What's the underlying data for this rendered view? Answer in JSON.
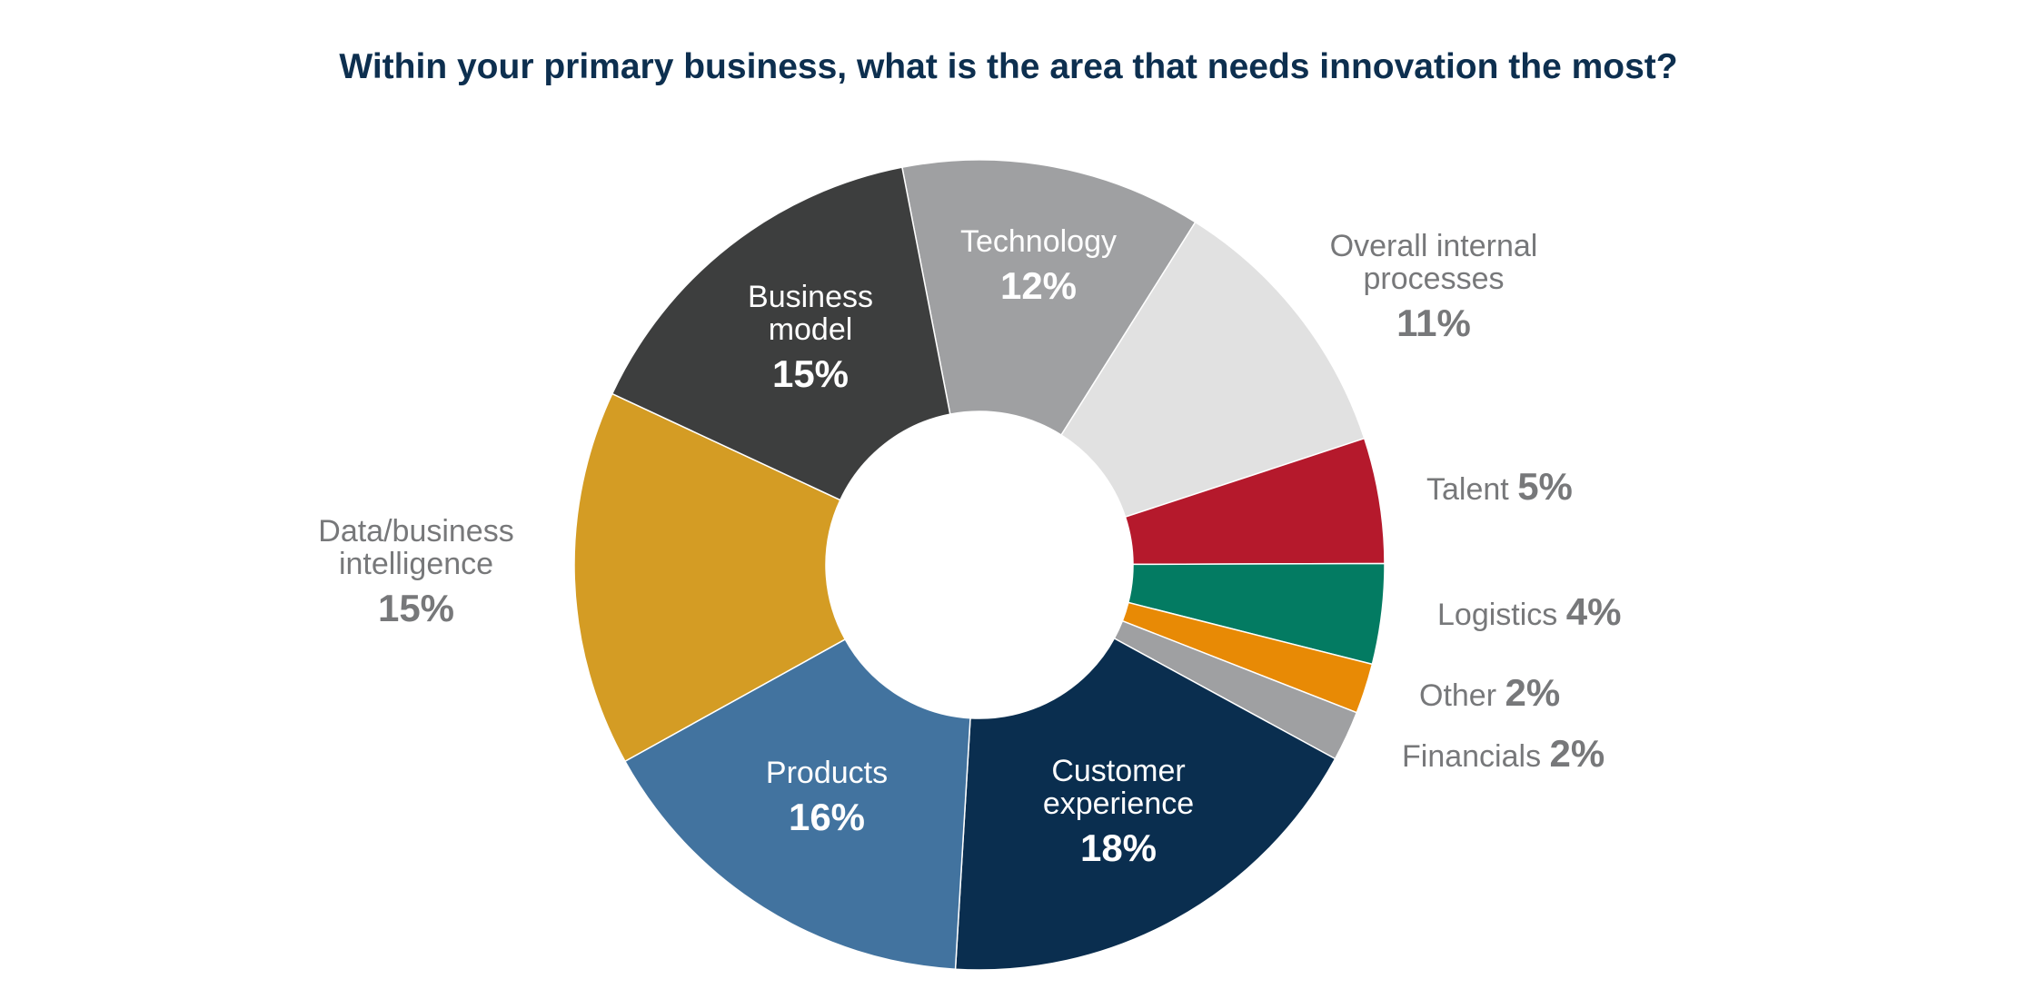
{
  "chart_data": {
    "type": "pie",
    "title": "Within your primary business, what is the area that needs innovation the most?",
    "unit": "%",
    "slices": [
      {
        "label": "Technology",
        "value": 12,
        "display": "12%",
        "color": "#9fa0a2"
      },
      {
        "label": "Overall internal processes",
        "value": 11,
        "display": "11%",
        "color": "#e1e1e1"
      },
      {
        "label": "Talent",
        "value": 5,
        "display": "5%",
        "color": "#b5192c"
      },
      {
        "label": "Logistics",
        "value": 4,
        "display": "4%",
        "color": "#037b62"
      },
      {
        "label": "Other",
        "value": 2,
        "display": "2%",
        "color": "#e88a05"
      },
      {
        "label": "Financials",
        "value": 2,
        "display": "2%",
        "color": "#9fa0a2"
      },
      {
        "label": "Customer experience",
        "value": 18,
        "display": "18%",
        "color": "#0a2e4f"
      },
      {
        "label": "Products",
        "value": 16,
        "display": "16%",
        "color": "#42739f"
      },
      {
        "label": "Data/business intelligence",
        "value": 15,
        "display": "15%",
        "color": "#d49c24"
      },
      {
        "label": "Business model",
        "value": 15,
        "display": "15%",
        "color": "#3d3e3e"
      }
    ]
  }
}
